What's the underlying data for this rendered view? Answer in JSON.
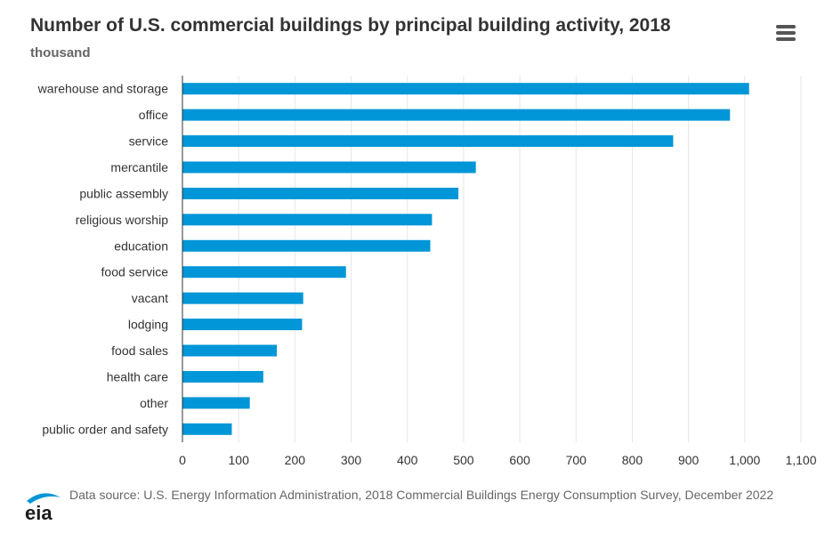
{
  "header": {
    "title": "Number of U.S. commercial buildings by principal building activity, 2018",
    "subtitle": "thousand"
  },
  "menu": {
    "icon": "hamburger-menu-icon"
  },
  "chart_data": {
    "type": "bar",
    "orientation": "horizontal",
    "title": "Number of U.S. commercial buildings by principal building activity, 2018",
    "subtitle": "thousand",
    "categories": [
      "warehouse and storage",
      "office",
      "service",
      "mercantile",
      "public assembly",
      "religious worship",
      "education",
      "food service",
      "vacant",
      "lodging",
      "food sales",
      "health care",
      "other",
      "public order and safety"
    ],
    "values": [
      1007,
      973,
      872,
      521,
      490,
      443,
      440,
      290,
      214,
      212,
      167,
      143,
      119,
      87
    ],
    "xlim": [
      0,
      1100
    ],
    "xticks": [
      0,
      100,
      200,
      300,
      400,
      500,
      600,
      700,
      800,
      900,
      1000,
      1100
    ],
    "xtick_labels": [
      "0",
      "100",
      "200",
      "300",
      "400",
      "500",
      "600",
      "700",
      "800",
      "900",
      "1,000",
      "1,100"
    ],
    "bar_color": "#0096d7",
    "grid": true
  },
  "footer": {
    "logo_text": "eia",
    "source": "Data source: U.S. Energy Information Administration, 2018 Commercial Buildings Energy Consumption Survey, December 2022"
  }
}
